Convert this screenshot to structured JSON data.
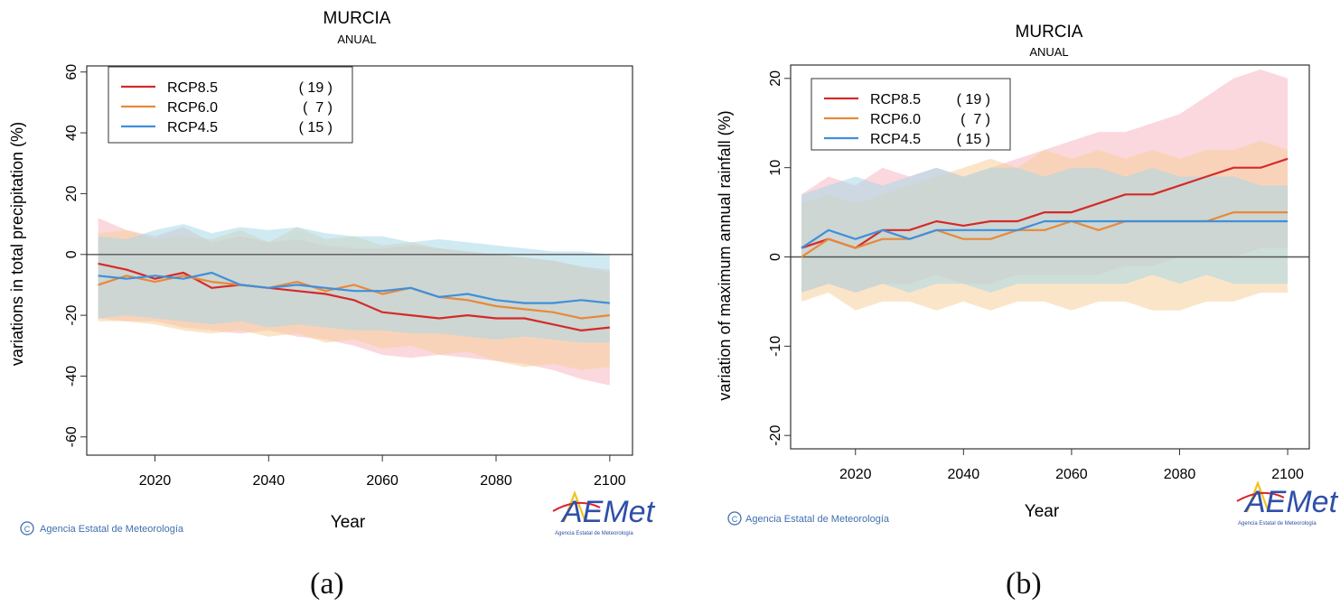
{
  "captions": {
    "a": "(a)",
    "b": "(b)"
  },
  "colors": {
    "rcp85": "#d42a2a",
    "rcp60": "#e8893a",
    "rcp45": "#3f8fdc",
    "band85": "#f7b8c2",
    "band60": "#f7d09a",
    "band45": "#a9d8e8",
    "axis": "#333333",
    "logo_blue": "#2f4fa8",
    "logo_yellow": "#f2c21b",
    "logo_red": "#d7262f"
  },
  "chart_data": [
    {
      "type": "line",
      "title": "MURCIA",
      "subtitle": "ANUAL",
      "xlabel": "Year",
      "ylabel": "variations in total precipitation (%)",
      "xlim": [
        2008,
        2104
      ],
      "ylim": [
        -66,
        62
      ],
      "xticks": [
        "2020",
        "2040",
        "2060",
        "2080",
        "2100"
      ],
      "yticks": [
        "60",
        "40",
        "20",
        "0",
        "-20",
        "-40",
        "-60"
      ],
      "credit": "Agencia Estatal de Meteorología",
      "logo": "AEMet",
      "logo_sub": "Agencia Estatal de Meteorología",
      "legend_position": "top-left",
      "series": [
        {
          "name": "RCP8.5",
          "count": "( 19 )",
          "x": [
            2010,
            2015,
            2020,
            2025,
            2030,
            2035,
            2040,
            2045,
            2050,
            2055,
            2060,
            2065,
            2070,
            2075,
            2080,
            2085,
            2090,
            2095,
            2100
          ],
          "values": [
            -3,
            -5,
            -8,
            -6,
            -11,
            -10,
            -11,
            -12,
            -13,
            -15,
            -19,
            -20,
            -21,
            -20,
            -21,
            -21,
            -23,
            -25,
            -24
          ],
          "upper": [
            12,
            8,
            6,
            9,
            4,
            6,
            4,
            5,
            3,
            2,
            2,
            3,
            2,
            1,
            0,
            -1,
            -2,
            -4,
            -5
          ],
          "lower": [
            -21,
            -22,
            -22,
            -24,
            -25,
            -26,
            -25,
            -27,
            -28,
            -30,
            -33,
            -34,
            -33,
            -34,
            -35,
            -36,
            -38,
            -41,
            -43
          ]
        },
        {
          "name": "RCP6.0",
          "count": "(  7 )",
          "x": [
            2010,
            2015,
            2020,
            2025,
            2030,
            2035,
            2040,
            2045,
            2050,
            2055,
            2060,
            2065,
            2070,
            2075,
            2080,
            2085,
            2090,
            2095,
            2100
          ],
          "values": [
            -10,
            -7,
            -9,
            -7,
            -9,
            -10,
            -11,
            -9,
            -12,
            -10,
            -13,
            -11,
            -14,
            -15,
            -17,
            -18,
            -19,
            -21,
            -20
          ],
          "upper": [
            7,
            8,
            5,
            6,
            5,
            8,
            4,
            9,
            5,
            6,
            3,
            4,
            2,
            1,
            0,
            -1,
            -2,
            -4,
            -6
          ],
          "lower": [
            -22,
            -22,
            -23,
            -25,
            -26,
            -25,
            -27,
            -26,
            -29,
            -28,
            -31,
            -30,
            -33,
            -32,
            -35,
            -37,
            -36,
            -38,
            -37
          ]
        },
        {
          "name": "RCP4.5",
          "count": "( 15 )",
          "x": [
            2010,
            2015,
            2020,
            2025,
            2030,
            2035,
            2040,
            2045,
            2050,
            2055,
            2060,
            2065,
            2070,
            2075,
            2080,
            2085,
            2090,
            2095,
            2100
          ],
          "values": [
            -7,
            -8,
            -7,
            -8,
            -6,
            -10,
            -11,
            -10,
            -11,
            -12,
            -12,
            -11,
            -14,
            -13,
            -15,
            -16,
            -16,
            -15,
            -16
          ],
          "upper": [
            6,
            5,
            8,
            10,
            7,
            9,
            8,
            9,
            7,
            6,
            6,
            4,
            5,
            4,
            3,
            2,
            1,
            1,
            0
          ],
          "lower": [
            -21,
            -20,
            -21,
            -22,
            -23,
            -22,
            -24,
            -23,
            -24,
            -25,
            -25,
            -26,
            -26,
            -27,
            -28,
            -27,
            -28,
            -29,
            -29
          ]
        }
      ]
    },
    {
      "type": "line",
      "title": "MURCIA",
      "subtitle": "ANUAL",
      "xlabel": "Year",
      "ylabel": "variation of maximum annual rainfall (%)",
      "xlim": [
        2008,
        2104
      ],
      "ylim": [
        -21.5,
        21.5
      ],
      "xticks": [
        "2020",
        "2040",
        "2060",
        "2080",
        "2100"
      ],
      "yticks": [
        "20",
        "10",
        "0",
        "-10",
        "-20"
      ],
      "credit": "Agencia Estatal de Meteorología",
      "logo": "AEMet",
      "logo_sub": "Agencia Estatal de Meteorología",
      "legend_position": "top-left",
      "series": [
        {
          "name": "RCP8.5",
          "count": "( 19 )",
          "x": [
            2010,
            2015,
            2020,
            2025,
            2030,
            2035,
            2040,
            2045,
            2050,
            2055,
            2060,
            2065,
            2070,
            2075,
            2080,
            2085,
            2090,
            2095,
            2100
          ],
          "values": [
            1,
            2,
            1,
            3,
            3,
            4,
            3.5,
            4,
            4,
            5,
            5,
            6,
            7,
            7,
            8,
            9,
            10,
            10,
            11
          ],
          "upper": [
            7,
            9,
            8,
            10,
            9,
            10,
            9,
            10,
            11,
            12,
            13,
            14,
            14,
            15,
            16,
            18,
            20,
            21,
            20
          ],
          "lower": [
            -4,
            -3,
            -4,
            -3,
            -3,
            -2,
            -3,
            -3,
            -2,
            -2,
            -2,
            -2,
            -1,
            -1,
            0,
            0,
            0,
            1,
            1
          ]
        },
        {
          "name": "RCP6.0",
          "count": "(  7 )",
          "x": [
            2010,
            2015,
            2020,
            2025,
            2030,
            2035,
            2040,
            2045,
            2050,
            2055,
            2060,
            2065,
            2070,
            2075,
            2080,
            2085,
            2090,
            2095,
            2100
          ],
          "values": [
            0,
            2,
            1,
            2,
            2,
            3,
            2,
            2,
            3,
            3,
            4,
            3,
            4,
            4,
            4,
            4,
            5,
            5,
            5
          ],
          "upper": [
            6,
            7,
            6,
            7,
            8,
            9,
            10,
            11,
            10,
            12,
            11,
            12,
            11,
            12,
            11,
            12,
            12,
            13,
            12
          ],
          "lower": [
            -5,
            -4,
            -6,
            -5,
            -5,
            -6,
            -5,
            -6,
            -5,
            -5,
            -6,
            -5,
            -5,
            -6,
            -6,
            -5,
            -5,
            -4,
            -4
          ]
        },
        {
          "name": "RCP4.5",
          "count": "( 15 )",
          "x": [
            2010,
            2015,
            2020,
            2025,
            2030,
            2035,
            2040,
            2045,
            2050,
            2055,
            2060,
            2065,
            2070,
            2075,
            2080,
            2085,
            2090,
            2095,
            2100
          ],
          "values": [
            1,
            3,
            2,
            3,
            2,
            3,
            3,
            3,
            3,
            4,
            4,
            4,
            4,
            4,
            4,
            4,
            4,
            4,
            4
          ],
          "upper": [
            7,
            8,
            9,
            8,
            9,
            10,
            9,
            10,
            10,
            9,
            10,
            10,
            9,
            10,
            9,
            9,
            9,
            8,
            8
          ],
          "lower": [
            -4,
            -3,
            -4,
            -3,
            -4,
            -3,
            -3,
            -4,
            -3,
            -3,
            -3,
            -3,
            -3,
            -2,
            -3,
            -2,
            -3,
            -3,
            -3
          ]
        }
      ]
    }
  ]
}
